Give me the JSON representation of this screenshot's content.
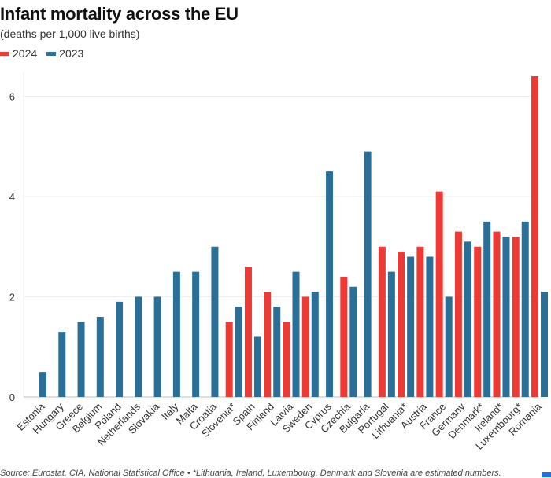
{
  "chart_data": {
    "type": "bar",
    "title": "Infant mortality across the EU",
    "subtitle": "(deaths per 1,000 live births)",
    "categories": [
      "Estonia",
      "Hungary",
      "Greece",
      "Belgium",
      "Poland",
      "Netherlands",
      "Slovakia",
      "Italy",
      "Malta",
      "Croatia",
      "Slovenia*",
      "Spain",
      "Finland",
      "Latvia",
      "Sweden",
      "Cyprus",
      "Czechia",
      "Bulgaria",
      "Portugal",
      "Lithuania*",
      "Austria",
      "France",
      "Germany",
      "Denmark*",
      "Ireland*",
      "Luxembourg*",
      "Romania"
    ],
    "series": [
      {
        "name": "2024",
        "color": "#ee3a35",
        "values": [
          null,
          null,
          null,
          null,
          null,
          null,
          null,
          null,
          null,
          null,
          1.5,
          2.6,
          2.1,
          1.5,
          2.0,
          null,
          2.4,
          null,
          3.0,
          2.9,
          3.0,
          4.1,
          3.3,
          3.0,
          3.3,
          3.2,
          6.4
        ]
      },
      {
        "name": "2023",
        "color": "#2a6f97",
        "values": [
          0.5,
          1.3,
          1.5,
          1.6,
          1.9,
          2.0,
          2.0,
          2.5,
          2.5,
          3.0,
          1.8,
          1.2,
          1.8,
          2.5,
          2.1,
          4.5,
          2.2,
          4.9,
          2.5,
          2.8,
          2.8,
          2.0,
          3.1,
          3.5,
          3.2,
          3.5,
          2.1
        ]
      }
    ],
    "yticks": [
      0,
      2,
      4,
      6
    ],
    "ylim": [
      0,
      6.5
    ],
    "grid": true,
    "legend_position": "top-left"
  },
  "source": "Source: Eurostat, CIA, National Statistical Office • *Lithuania, Ireland, Luxembourg, Denmark and Slovenia are estimated numbers."
}
